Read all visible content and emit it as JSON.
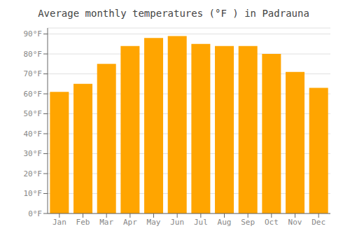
{
  "chart_data": {
    "type": "bar",
    "title": "Average monthly temperatures (°F ) in Padrauna",
    "categories": [
      "Jan",
      "Feb",
      "Mar",
      "Apr",
      "May",
      "Jun",
      "Jul",
      "Aug",
      "Sep",
      "Oct",
      "Nov",
      "Dec"
    ],
    "values": [
      61,
      65,
      75,
      84,
      88,
      89,
      85,
      84,
      84,
      80,
      71,
      63
    ],
    "color": "#FFA500",
    "ylim": [
      0,
      93
    ],
    "yticks": [
      {
        "value": 0,
        "label": "0°F"
      },
      {
        "value": 10,
        "label": "10°F"
      },
      {
        "value": 20,
        "label": "20°F"
      },
      {
        "value": 30,
        "label": "30°F"
      },
      {
        "value": 40,
        "label": "40°F"
      },
      {
        "value": 50,
        "label": "50°F"
      },
      {
        "value": 60,
        "label": "60°F"
      },
      {
        "value": 70,
        "label": "70°F"
      },
      {
        "value": 80,
        "label": "80°F"
      },
      {
        "value": 90,
        "label": "90°F"
      }
    ],
    "grid": true
  }
}
